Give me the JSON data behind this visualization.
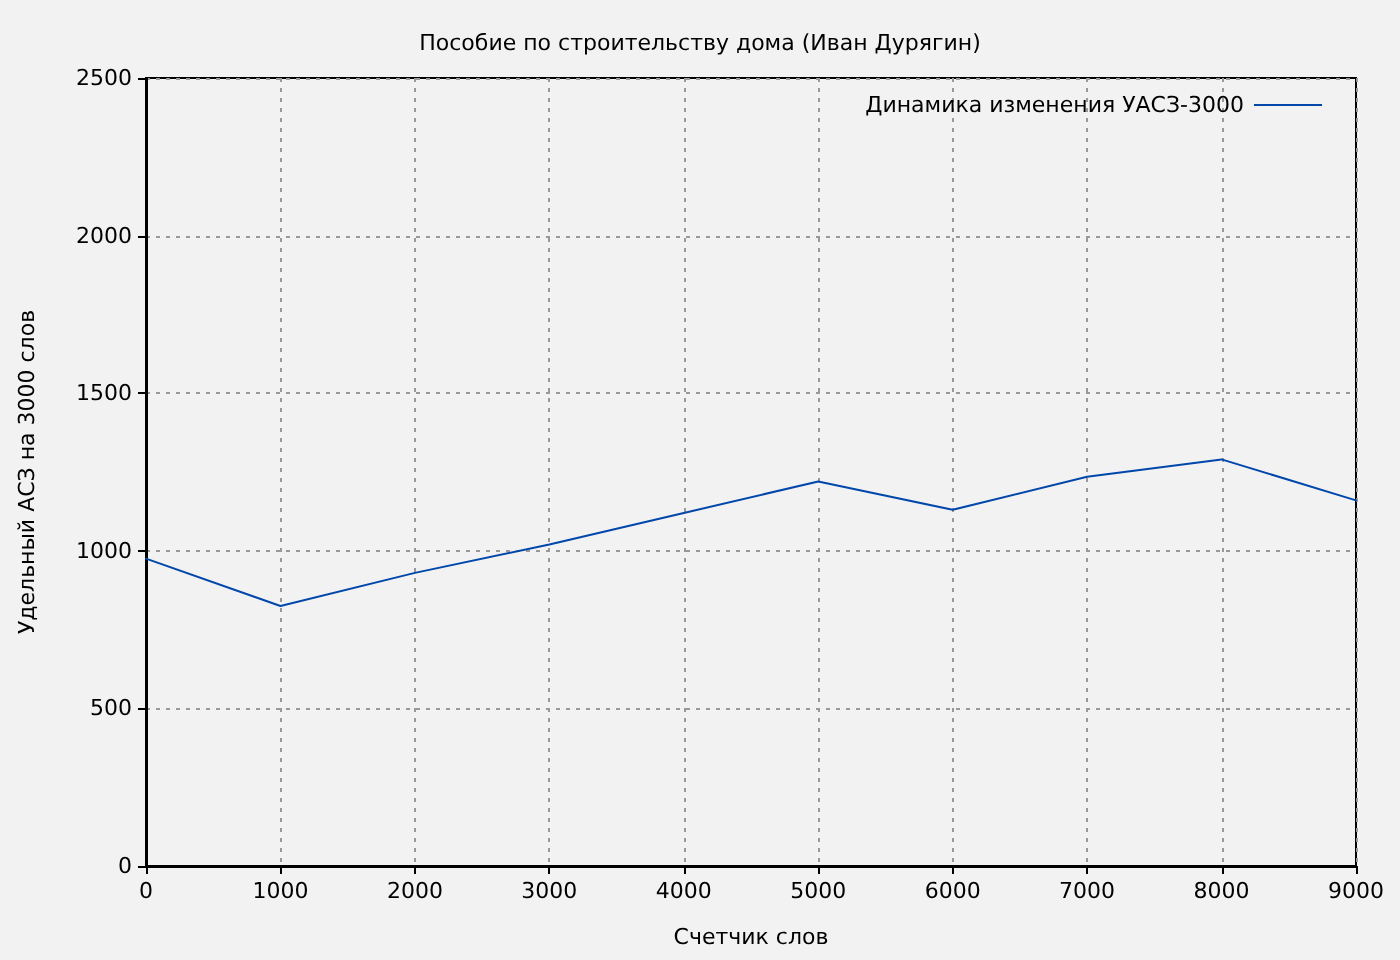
{
  "chart_data": {
    "type": "line",
    "title": "Пособие по строительству дома (Иван Дурягин)",
    "xlabel": "Счетчик слов",
    "ylabel": "Удельный АСЗ на 3000 слов",
    "x": [
      0,
      1000,
      2000,
      3000,
      4000,
      5000,
      6000,
      7000,
      8000,
      9000
    ],
    "series": [
      {
        "name": "Динамика изменения УАСЗ-3000",
        "color": "#0047ab",
        "values": [
          975,
          825,
          930,
          1020,
          1120,
          1220,
          1130,
          1235,
          1290,
          1160
        ]
      }
    ],
    "xlim": [
      0,
      9000
    ],
    "xticks": [
      0,
      1000,
      2000,
      3000,
      4000,
      5000,
      6000,
      7000,
      8000,
      9000
    ],
    "ylim": [
      0,
      2500
    ],
    "yticks": [
      0,
      500,
      1000,
      1500,
      2000,
      2500
    ],
    "grid": true,
    "legend": "top right",
    "marker": "none",
    "line_style": "solid"
  }
}
